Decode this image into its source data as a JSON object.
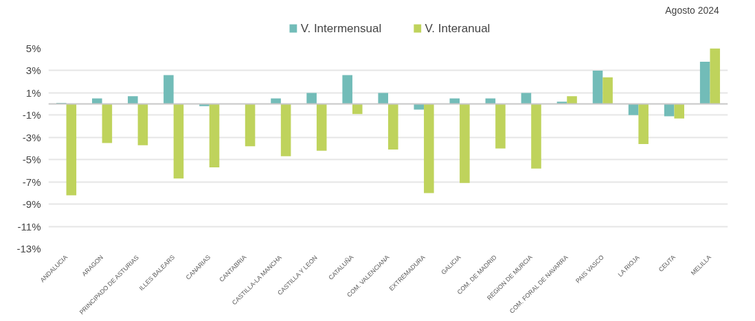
{
  "chart_data": {
    "type": "bar",
    "categories": [
      "ANDALUCIA",
      "ARAGON",
      "PRINCIPADO DE ASTURIAS",
      "ILLES BALEARS",
      "CANARIAS",
      "CANTABRIA",
      "CASTILLA-LA MANCHA",
      "CASTILLA Y LEON",
      "CATALUÑA",
      "COM. VALENCIANA",
      "EXTREMADURA",
      "GALICIA",
      "COM. DE MADRID",
      "REGION DE MURCIA",
      "COM. FORAL DE NAVARRA",
      "PAIS VASCO",
      "LA RIOJA",
      "CEUTA",
      "MELILLA"
    ],
    "series": [
      {
        "name": "V. Intermensual",
        "color": "#72bcb8",
        "values": [
          0.1,
          0.5,
          0.7,
          2.6,
          -0.2,
          null,
          0.5,
          1.0,
          2.6,
          1.0,
          -0.5,
          0.5,
          0.5,
          1.0,
          0.2,
          3.0,
          -1.0,
          -1.1,
          3.8
        ]
      },
      {
        "name": "V. Interanual",
        "color": "#bfd35c",
        "values": [
          -8.2,
          -3.5,
          -3.7,
          -6.7,
          -5.7,
          -3.8,
          -4.7,
          -4.2,
          -0.9,
          -4.1,
          -8.0,
          -7.1,
          -4.0,
          -5.8,
          0.7,
          2.4,
          -3.6,
          -1.3,
          5.0
        ]
      }
    ],
    "ylim": [
      -13,
      5
    ],
    "yticks": [
      {
        "value": 5,
        "label": "5%"
      },
      {
        "value": 3,
        "label": "3%"
      },
      {
        "value": 1,
        "label": "1%"
      },
      {
        "value": -1,
        "label": "-1%"
      },
      {
        "value": -3,
        "label": "-3%"
      },
      {
        "value": -5,
        "label": "-5%"
      },
      {
        "value": -7,
        "label": "-7%"
      },
      {
        "value": -9,
        "label": "-9%"
      },
      {
        "value": -11,
        "label": "-11%"
      },
      {
        "value": -13,
        "label": "-13%"
      }
    ],
    "ref_lines": [
      {
        "axis": "y",
        "value": 0,
        "color": "#c8c8c8"
      }
    ],
    "grid": "y",
    "legend": "top",
    "annotations": [
      {
        "text": "Agosto 2024"
      }
    ]
  }
}
